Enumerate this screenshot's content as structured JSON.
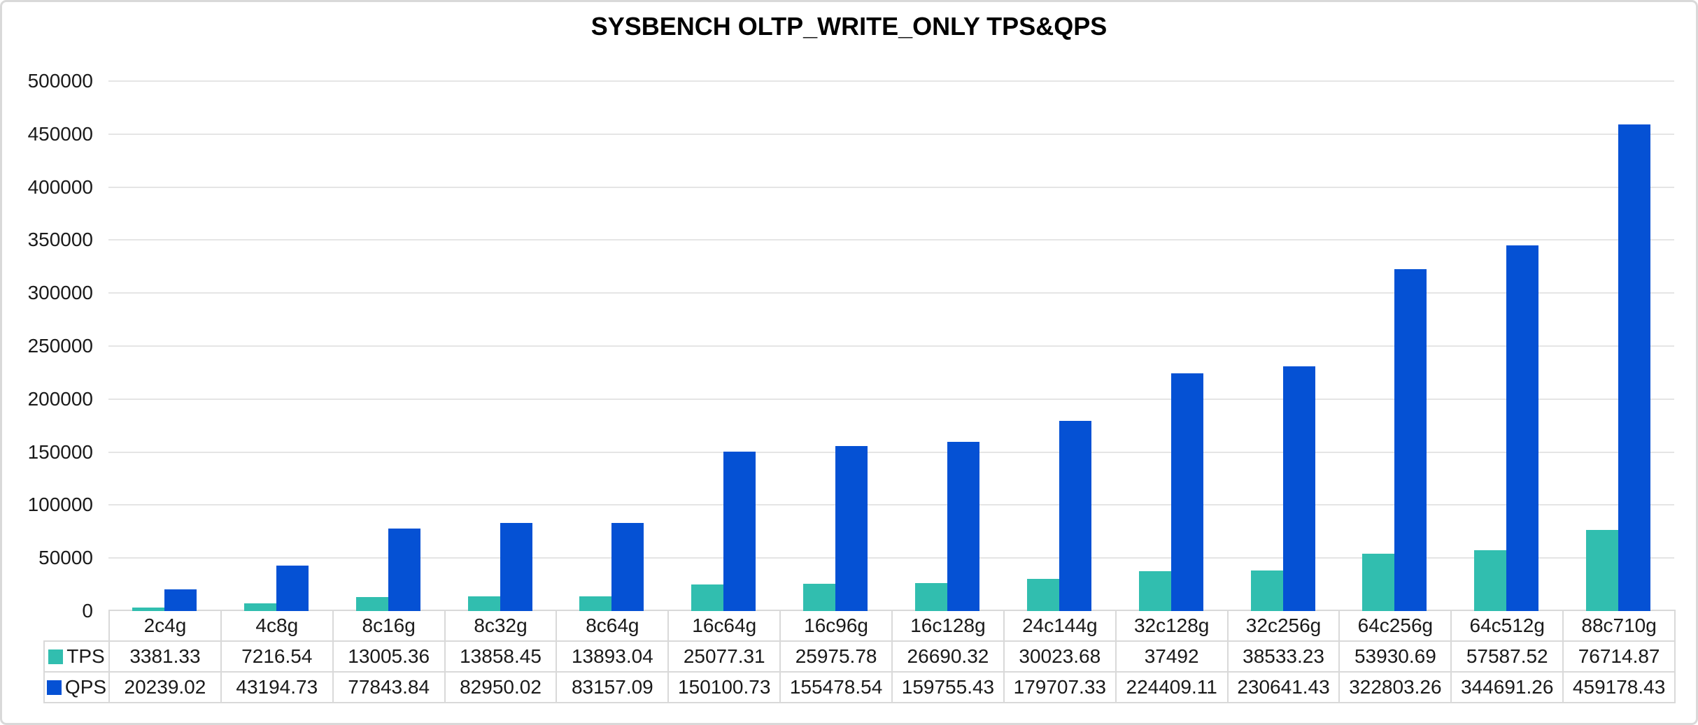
{
  "title": "SYSBENCH OLTP_WRITE_ONLY TPS&QPS",
  "chart_data": {
    "type": "bar",
    "title": "SYSBENCH OLTP_WRITE_ONLY TPS&QPS",
    "categories": [
      "2c4g",
      "4c8g",
      "8c16g",
      "8c32g",
      "8c64g",
      "16c64g",
      "16c96g",
      "16c128g",
      "24c144g",
      "32c128g",
      "32c256g",
      "64c256g",
      "64c512g",
      "88c710g"
    ],
    "series": [
      {
        "name": "TPS",
        "color": "#31beaf",
        "values": [
          3381.33,
          7216.54,
          13005.36,
          13858.45,
          13893.04,
          25077.31,
          25975.78,
          26690.32,
          30023.68,
          37492,
          38533.23,
          53930.69,
          57587.52,
          76714.87
        ]
      },
      {
        "name": "QPS",
        "color": "#0551d4",
        "values": [
          20239.02,
          43194.73,
          77843.84,
          82950.02,
          83157.09,
          150100.73,
          155478.54,
          159755.43,
          179707.33,
          224409.11,
          230641.43,
          322803.26,
          344691.26,
          459178.43
        ]
      }
    ],
    "xlabel": "",
    "ylabel": "",
    "ylim": [
      0,
      500000
    ],
    "ytick_step": 50000,
    "ytick_labels": [
      "0",
      "50000",
      "100000",
      "150000",
      "200000",
      "250000",
      "300000",
      "350000",
      "400000",
      "450000",
      "500000"
    ],
    "grid": true,
    "legend_position": "data-table-left-column",
    "data_table_shown": true
  },
  "colors": {
    "tps_bar": "#31beaf",
    "qps_bar": "#0551d4",
    "gridline": "#e5e5e5",
    "table_border": "#d9d9d9",
    "text": "#1a1a1a",
    "background": "#ffffff"
  }
}
